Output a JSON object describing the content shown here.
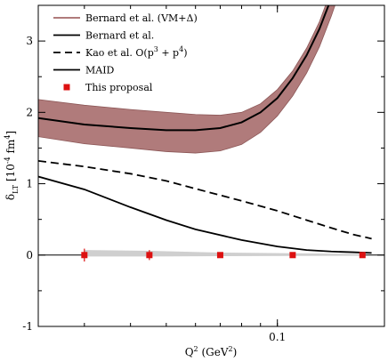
{
  "chart_data": {
    "type": "line",
    "xscale": "log",
    "xlim": [
      0.0225,
      0.195
    ],
    "ylim": [
      -1,
      3.5
    ],
    "xticks": [
      0.1
    ],
    "xtick_labels": [
      "0.1"
    ],
    "yticks": [
      -1,
      0,
      1,
      2,
      3
    ],
    "ytick_labels": [
      "-1",
      "0",
      "1",
      "2",
      "3"
    ],
    "xlabel": {
      "base": "Q",
      "sup": "2",
      "unit": " (GeV",
      "unit_sup": "2",
      "close": ")"
    },
    "ylabel": {
      "base": "δ",
      "sub": "LT",
      "unit": " [10",
      "unit_sup": "-4",
      "unit_mid": " fm",
      "unit_sup2": "4",
      "close": "]"
    },
    "grid": false,
    "legend_position": "top-right",
    "colors": {
      "band_fill": "#b07b7b",
      "band_edge": "#8c5757",
      "proposal_marker": "#dd1111",
      "proposal_band": "#cfcfcf",
      "line": "#000000"
    },
    "legend": [
      {
        "label": "Bernard et al. (VM+Δ)",
        "style": "band"
      },
      {
        "label": "Bernard et al.",
        "style": "solid-thick"
      },
      {
        "label_parts": [
          "Kao et al. O(p",
          "3",
          " + p",
          "4",
          ")"
        ],
        "style": "dashed"
      },
      {
        "label": "MAID",
        "style": "solid"
      },
      {
        "label": "This proposal",
        "style": "square-marker"
      }
    ],
    "series": [
      {
        "name": "Bernard et al. (VM+Δ)",
        "kind": "band",
        "x": [
          0.0225,
          0.03,
          0.04,
          0.05,
          0.06,
          0.07,
          0.08,
          0.09,
          0.1,
          0.11,
          0.12,
          0.13,
          0.14,
          0.15
        ],
        "lower": [
          1.66,
          1.56,
          1.5,
          1.45,
          1.43,
          1.46,
          1.55,
          1.72,
          1.95,
          2.23,
          2.55,
          2.92,
          3.35,
          3.8
        ],
        "upper": [
          2.18,
          2.1,
          2.04,
          2.0,
          1.97,
          1.96,
          2.0,
          2.12,
          2.32,
          2.58,
          2.9,
          3.27,
          3.72,
          4.2
        ]
      },
      {
        "name": "Bernard et al.",
        "kind": "line",
        "style": "solid-thick",
        "x": [
          0.0225,
          0.03,
          0.04,
          0.05,
          0.06,
          0.07,
          0.08,
          0.09,
          0.1,
          0.11,
          0.12,
          0.13,
          0.14,
          0.15
        ],
        "y": [
          1.92,
          1.83,
          1.78,
          1.75,
          1.75,
          1.78,
          1.86,
          2.0,
          2.2,
          2.48,
          2.8,
          3.17,
          3.6,
          4.05
        ]
      },
      {
        "name": "Kao et al. O(p3 + p4)",
        "kind": "line",
        "style": "dashed",
        "x": [
          0.0225,
          0.03,
          0.04,
          0.05,
          0.06,
          0.08,
          0.1,
          0.12,
          0.14,
          0.16,
          0.18
        ],
        "y": [
          1.32,
          1.24,
          1.14,
          1.04,
          0.93,
          0.76,
          0.62,
          0.49,
          0.38,
          0.29,
          0.23
        ]
      },
      {
        "name": "MAID",
        "kind": "line",
        "style": "solid",
        "x": [
          0.0225,
          0.03,
          0.04,
          0.05,
          0.06,
          0.08,
          0.1,
          0.12,
          0.14,
          0.16,
          0.18
        ],
        "y": [
          1.1,
          0.92,
          0.67,
          0.49,
          0.36,
          0.21,
          0.12,
          0.07,
          0.05,
          0.04,
          0.03
        ]
      },
      {
        "name": "This proposal",
        "kind": "points",
        "x": [
          0.03,
          0.045,
          0.07,
          0.11,
          0.17
        ],
        "y": [
          0,
          0,
          0,
          0,
          0
        ],
        "yerr": [
          0.09,
          0.07,
          0.02,
          0.015,
          0.012
        ],
        "band_lower": [
          -0.02,
          -0.02,
          -0.015,
          -0.012,
          -0.01
        ],
        "band_upper": [
          0.07,
          0.06,
          0.035,
          0.025,
          0.015
        ]
      }
    ]
  }
}
